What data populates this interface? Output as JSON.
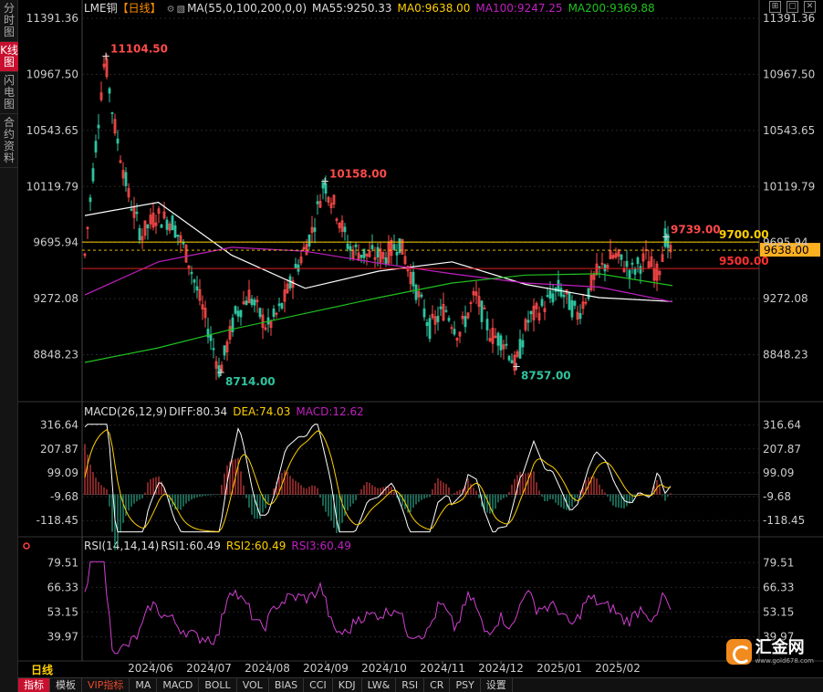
{
  "side_nav": [
    {
      "label": "分时图",
      "active": false
    },
    {
      "label": "K线图",
      "active": true
    },
    {
      "label": "闪电图",
      "active": false
    },
    {
      "label": "合约资料",
      "active": false
    }
  ],
  "kline": {
    "symbol": "LME铜",
    "period_tag": "【日线】",
    "ma_params": "MA(55,0,100,200,0,0)",
    "ma55": "MA55:9250.33",
    "ma0": "MA0:9638.00",
    "ma100": "MA100:9247.25",
    "ma200": "MA200:9369.88",
    "y_ticks": [
      "11391.36",
      "10967.50",
      "10543.65",
      "10119.79",
      "9695.94",
      "9272.08",
      "8848.23"
    ],
    "annotations": {
      "high1": "11104.50",
      "low1": "8714.00",
      "high2": "10158.00",
      "low2": "8757.00",
      "high3": "9739.00",
      "line_yellow": "9700.00",
      "line_red": "9500.00",
      "last_price": "9638.00"
    }
  },
  "macd": {
    "title": "MACD(26,12,9)",
    "diff": "DIFF:80.34",
    "dea": "DEA:74.03",
    "macd": "MACD:12.62",
    "y_ticks": [
      "316.64",
      "207.87",
      "99.09",
      "-9.68",
      "-118.45"
    ]
  },
  "rsi": {
    "title": "RSI(14,14,14)",
    "rsi1": "RSI1:60.49",
    "rsi2": "RSI2:60.49",
    "rsi3": "RSI3:60.49",
    "y_ticks": [
      "79.51",
      "66.33",
      "53.15",
      "39.97"
    ]
  },
  "x_ticks": [
    "2024/06",
    "2024/07",
    "2024/08",
    "2024/09",
    "2024/10",
    "2024/11",
    "2024/12",
    "2025/01",
    "2025/02"
  ],
  "period_label": "日线",
  "toolbar": [
    "指标",
    "模板",
    "VIP指标",
    "MA",
    "MACD",
    "BOLL",
    "VOL",
    "BIAS",
    "CCI",
    "KDJ",
    "LW&",
    "RSI",
    "CR",
    "PSY",
    "设置"
  ],
  "logo": {
    "name": "汇金网",
    "url": "www.gold678.com"
  },
  "colors": {
    "up": "#ff4a4a",
    "down": "#2fc4a0",
    "ma55": "#ffffff",
    "ma0": "#ffd000",
    "ma100": "#c020c0",
    "ma200": "#20c020",
    "accent": "#c8102e"
  },
  "chart_data": {
    "type": "line",
    "title": "LME铜【日线】",
    "x": [
      "2024/06",
      "2024/07",
      "2024/08",
      "2024/09",
      "2024/10",
      "2024/11",
      "2024/12",
      "2025/01",
      "2025/02"
    ],
    "series": [
      {
        "name": "MA55",
        "values": [
          9900,
          10000,
          9600,
          9350,
          9480,
          9550,
          9380,
          9280,
          9250
        ]
      },
      {
        "name": "MA100",
        "values": [
          9300,
          9550,
          9660,
          9630,
          9540,
          9460,
          9390,
          9360,
          9247
        ]
      },
      {
        "name": "MA200",
        "values": [
          8790,
          8900,
          9040,
          9160,
          9280,
          9390,
          9450,
          9460,
          9370
        ]
      }
    ],
    "ylim": [
      8700,
      11391.36
    ],
    "price_markers": {
      "high": 11104.5,
      "low": 8714,
      "second_high": 10158,
      "second_low": 8757,
      "recent_high": 9739,
      "last": 9638
    },
    "macd": {
      "diff": 80.34,
      "dea": 74.03,
      "macd": 12.62,
      "ylim": [
        -180,
        340
      ]
    },
    "rsi": {
      "rsi1": 60.49,
      "rsi2": 60.49,
      "rsi3": 60.49,
      "ylim": [
        28,
        85
      ]
    }
  }
}
